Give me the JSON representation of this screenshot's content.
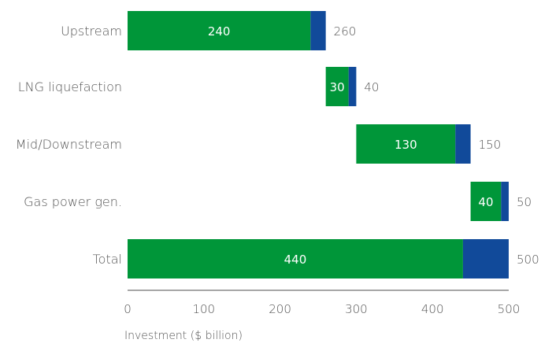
{
  "chart_data": {
    "type": "bar",
    "orientation": "horizontal",
    "stacked": true,
    "waterfall": true,
    "categories": [
      "Upstream",
      "LNG liquefaction",
      "Mid/Downstream",
      "Gas power gen.",
      "Total"
    ],
    "series": [
      {
        "values": [
          240,
          30,
          130,
          40,
          440
        ],
        "color": "#009639"
      },
      {
        "values": [
          20,
          10,
          20,
          10,
          60
        ],
        "color": "#114a9a"
      }
    ],
    "offsets": [
      0,
      260,
      300,
      450,
      0
    ],
    "totals": [
      260,
      40,
      150,
      50,
      500
    ],
    "inner_labels": [
      "240",
      "30",
      "130",
      "40",
      "440"
    ],
    "total_labels": [
      "260",
      "40",
      "150",
      "50",
      "500"
    ],
    "xlabel": "Investment ($ billion)",
    "xlim": [
      0,
      500
    ],
    "xticks": [
      0,
      100,
      200,
      300,
      400,
      500
    ],
    "grid": false
  }
}
